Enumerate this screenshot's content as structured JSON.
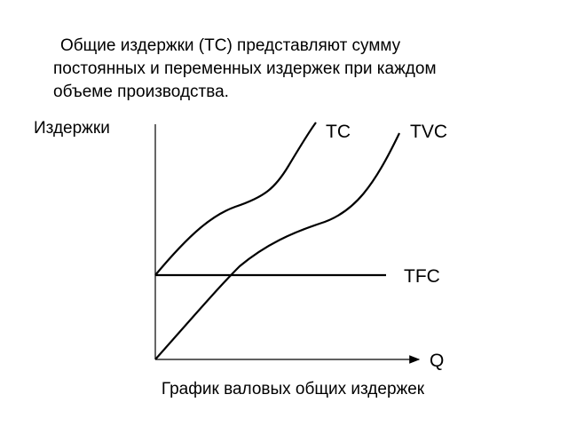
{
  "description": {
    "lines": [
      "Общие издержки (TC) представляют сумму",
      "постоянных и переменных издержек при каждом",
      "объеме производства."
    ]
  },
  "diagram": {
    "y_axis_label": "Издержки",
    "x_axis_label": "Q",
    "curves": [
      {
        "label": "TC"
      },
      {
        "label": "TVC"
      },
      {
        "label": "TFC"
      }
    ],
    "caption": "График валовых общих издержек"
  }
}
